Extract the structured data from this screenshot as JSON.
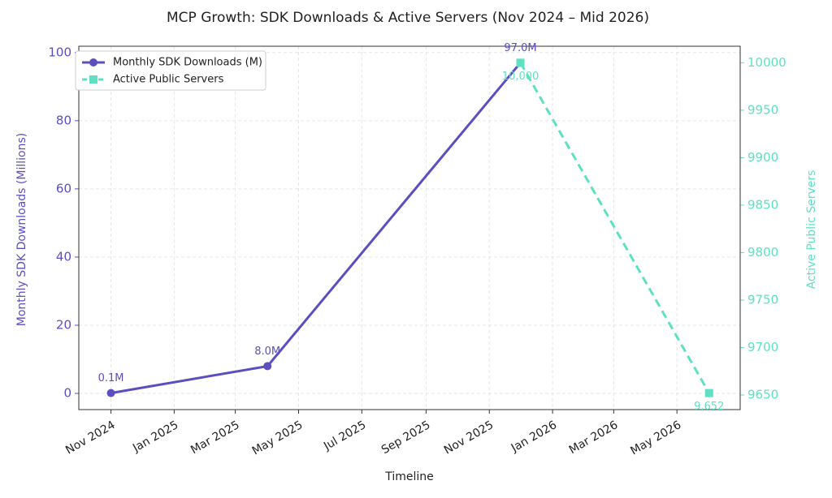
{
  "chart_data": {
    "type": "line",
    "title": "MCP Growth: SDK Downloads & Active Servers (Nov 2024 – Mid 2026)",
    "x_label": "Timeline",
    "y_label": "Monthly SDK Downloads (Millions)",
    "y2_label": "Active Public Servers",
    "xlim": [
      "2024-10",
      "2026-07"
    ],
    "xticks": [
      {
        "value": "2024-11",
        "label": "Nov 2024"
      },
      {
        "value": "2025-01",
        "label": "Jan 2025"
      },
      {
        "value": "2025-03",
        "label": "Mar 2025"
      },
      {
        "value": "2025-05",
        "label": "May 2025"
      },
      {
        "value": "2025-07",
        "label": "Jul 2025"
      },
      {
        "value": "2025-09",
        "label": "Sep 2025"
      },
      {
        "value": "2025-11",
        "label": "Nov 2025"
      },
      {
        "value": "2026-01",
        "label": "Jan 2026"
      },
      {
        "value": "2026-03",
        "label": "Mar 2026"
      },
      {
        "value": "2026-05",
        "label": "May 2026"
      }
    ],
    "ylim": [
      -4.745,
      101.845
    ],
    "yticks": [
      0,
      20,
      40,
      60,
      80,
      100
    ],
    "y2lim": [
      9634.6,
      10017.4
    ],
    "y2ticks": [
      9650,
      9700,
      9750,
      9800,
      9850,
      9900,
      9950,
      10000
    ],
    "grid": true,
    "legend": "upper left",
    "series": [
      {
        "name": "Monthly SDK Downloads (M)",
        "color": "#5b4fc0",
        "linestyle": "solid",
        "marker": "circle",
        "x": [
          "2024-11",
          "2025-04",
          "2025-12"
        ],
        "values": [
          0.1,
          8.0,
          97.0
        ],
        "value_labels": [
          "0.1M",
          "8.0M",
          "97.0M"
        ]
      },
      {
        "name": "Active Public Servers",
        "color": "#5fe0c2",
        "linestyle": "dashed",
        "marker": "square",
        "axis": "y2",
        "x": [
          "2025-12",
          "2026-06"
        ],
        "values": [
          10000,
          9652
        ],
        "value_labels": [
          "10,000",
          "9,652"
        ]
      }
    ]
  }
}
